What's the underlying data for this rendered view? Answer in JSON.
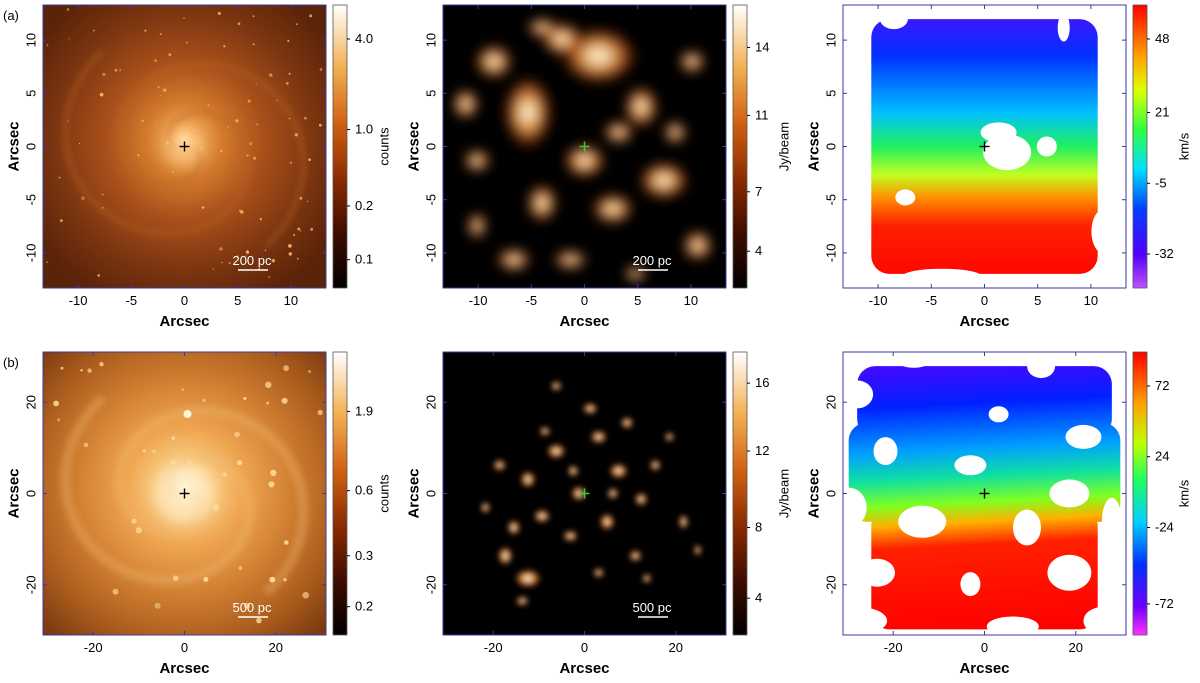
{
  "rows": [
    {
      "label": "(a)",
      "panels": [
        {
          "kind": "optical",
          "x_ticks": [
            "-10",
            "-5",
            "0",
            "5",
            "10"
          ],
          "x_tick_values": [
            -10,
            -5,
            0,
            5,
            10
          ],
          "y_ticks": [
            "10",
            "5",
            "0",
            "-5",
            "-10"
          ],
          "y_tick_values": [
            10,
            5,
            0,
            -5,
            -10
          ],
          "range": [
            -13.3,
            13.3
          ],
          "xlabel": "Arcsec",
          "ylabel": "Arcsec",
          "colorbar": {
            "label": "counts",
            "ticks": [
              "4.0",
              "1.0",
              "0.2",
              "0.1"
            ],
            "tick_fracs": [
              0.12,
              0.44,
              0.71,
              0.9
            ]
          },
          "scalebar": "200 pc"
        },
        {
          "kind": "intensity",
          "x_ticks": [
            "-10",
            "-5",
            "0",
            "5",
            "10"
          ],
          "x_tick_values": [
            -10,
            -5,
            0,
            5,
            10
          ],
          "y_ticks": [
            "10",
            "5",
            "0",
            "-5",
            "-10"
          ],
          "y_tick_values": [
            10,
            5,
            0,
            -5,
            -10
          ],
          "range": [
            -13.3,
            13.3
          ],
          "xlabel": "Arcsec",
          "ylabel": "Arcsec",
          "colorbar": {
            "label": "Jy/beam",
            "ticks": [
              "14",
              "11",
              "7",
              "4"
            ],
            "tick_fracs": [
              0.15,
              0.39,
              0.66,
              0.87
            ]
          },
          "scalebar": "200 pc"
        },
        {
          "kind": "velocity",
          "x_ticks": [
            "-10",
            "-5",
            "0",
            "5",
            "10"
          ],
          "x_tick_values": [
            -10,
            -5,
            0,
            5,
            10
          ],
          "y_ticks": [
            "10",
            "5",
            "0",
            "-5",
            "-10"
          ],
          "y_tick_values": [
            10,
            5,
            0,
            -5,
            -10
          ],
          "range": [
            -13.3,
            13.3
          ],
          "xlabel": "Arcsec",
          "ylabel": "Arcsec",
          "colorbar": {
            "label": "km/s",
            "ticks": [
              "48",
              "21",
              "-5",
              "-32"
            ],
            "tick_fracs": [
              0.12,
              0.38,
              0.63,
              0.88
            ]
          },
          "scalebar": ""
        }
      ]
    },
    {
      "label": "(b)",
      "panels": [
        {
          "kind": "optical",
          "x_ticks": [
            "-20",
            "0",
            "20"
          ],
          "x_tick_values": [
            -20,
            0,
            20
          ],
          "y_ticks": [
            "20",
            "0",
            "-20"
          ],
          "y_tick_values": [
            20,
            0,
            -20
          ],
          "range": [
            -31,
            31
          ],
          "xlabel": "Arcsec",
          "ylabel": "Arcsec",
          "colorbar": {
            "label": "counts",
            "ticks": [
              "1.9",
              "0.6",
              "0.3",
              "0.2"
            ],
            "tick_fracs": [
              0.21,
              0.49,
              0.72,
              0.9
            ]
          },
          "scalebar": "500 pc"
        },
        {
          "kind": "intensity",
          "x_ticks": [
            "-20",
            "0",
            "20"
          ],
          "x_tick_values": [
            -20,
            0,
            20
          ],
          "y_ticks": [
            "20",
            "0",
            "-20"
          ],
          "y_tick_values": [
            20,
            0,
            -20
          ],
          "range": [
            -31,
            31
          ],
          "xlabel": "Arcsec",
          "ylabel": "Arcsec",
          "colorbar": {
            "label": "Jy/beam",
            "ticks": [
              "16",
              "12",
              "8",
              "4"
            ],
            "tick_fracs": [
              0.11,
              0.35,
              0.62,
              0.87
            ]
          },
          "scalebar": "500 pc"
        },
        {
          "kind": "velocity",
          "x_ticks": [
            "-20",
            "0",
            "20"
          ],
          "x_tick_values": [
            -20,
            0,
            20
          ],
          "y_ticks": [
            "20",
            "0",
            "-20"
          ],
          "y_tick_values": [
            20,
            0,
            -20
          ],
          "range": [
            -31,
            31
          ],
          "xlabel": "Arcsec",
          "ylabel": "Arcsec",
          "colorbar": {
            "label": "km/s",
            "ticks": [
              "72",
              "24",
              "-24",
              "-72"
            ],
            "tick_fracs": [
              0.12,
              0.37,
              0.62,
              0.89
            ]
          },
          "scalebar": ""
        }
      ]
    }
  ]
}
